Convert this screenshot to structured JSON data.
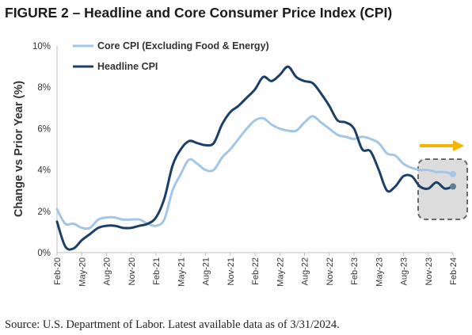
{
  "title": "FIGURE 2 – Headline and Core Consumer Price Index (CPI)",
  "source": "Source: U.S. Department of Labor. Latest available data as of 3/31/2024.",
  "colors": {
    "core": "#a4c6e6",
    "headline": "#1c3f66",
    "arrow": "#f5b400",
    "highlight_fill": "#dcdcdc",
    "highlight_border": "#6a6a6a",
    "axis": "#bfbfbf"
  },
  "chart_data": {
    "type": "line",
    "title": "FIGURE 2 – Headline and Core Consumer Price Index (CPI)",
    "xlabel": "",
    "ylabel": "Change vs Prior Year (%)",
    "ylim": [
      0,
      10
    ],
    "y_ticks": [
      "0%",
      "2%",
      "4%",
      "6%",
      "8%",
      "10%"
    ],
    "x_tick_labels": [
      "Feb-20",
      "May-20",
      "Aug-20",
      "Nov-20",
      "Feb-21",
      "May-21",
      "Aug-21",
      "Nov-21",
      "Feb-22",
      "May-22",
      "Aug-22",
      "Nov-22",
      "Feb-23",
      "May-23",
      "Aug-23",
      "Nov-23",
      "Feb-24"
    ],
    "x": [
      "Feb-20",
      "Mar-20",
      "Apr-20",
      "May-20",
      "Jun-20",
      "Jul-20",
      "Aug-20",
      "Sep-20",
      "Oct-20",
      "Nov-20",
      "Dec-20",
      "Jan-21",
      "Feb-21",
      "Mar-21",
      "Apr-21",
      "May-21",
      "Jun-21",
      "Jul-21",
      "Aug-21",
      "Sep-21",
      "Oct-21",
      "Nov-21",
      "Dec-21",
      "Jan-22",
      "Feb-22",
      "Mar-22",
      "Apr-22",
      "May-22",
      "Jun-22",
      "Jul-22",
      "Aug-22",
      "Sep-22",
      "Oct-22",
      "Nov-22",
      "Dec-22",
      "Jan-23",
      "Feb-23",
      "Mar-23",
      "Apr-23",
      "May-23",
      "Jun-23",
      "Jul-23",
      "Aug-23",
      "Sep-23",
      "Oct-23",
      "Nov-23",
      "Dec-23",
      "Jan-24",
      "Feb-24"
    ],
    "grid": false,
    "legend": "top-left",
    "series": [
      {
        "name": "Core CPI (Excluding Food & Energy)",
        "color": "#a4c6e6",
        "values": [
          2.1,
          1.4,
          1.4,
          1.2,
          1.2,
          1.6,
          1.7,
          1.7,
          1.6,
          1.6,
          1.6,
          1.4,
          1.3,
          1.6,
          3.0,
          3.8,
          4.5,
          4.3,
          4.0,
          4.0,
          4.6,
          5.0,
          5.5,
          6.0,
          6.4,
          6.5,
          6.2,
          6.0,
          5.9,
          5.9,
          6.3,
          6.6,
          6.3,
          6.0,
          5.7,
          5.6,
          5.5,
          5.6,
          5.5,
          5.3,
          4.8,
          4.7,
          4.3,
          4.1,
          4.0,
          4.0,
          3.9,
          3.9,
          3.8
        ]
      },
      {
        "name": "Headline CPI",
        "color": "#1c3f66",
        "values": [
          1.5,
          0.3,
          0.2,
          0.6,
          0.9,
          1.2,
          1.3,
          1.3,
          1.2,
          1.2,
          1.3,
          1.4,
          1.7,
          2.6,
          4.2,
          5.0,
          5.4,
          5.3,
          5.2,
          5.3,
          6.2,
          6.8,
          7.1,
          7.5,
          7.9,
          8.5,
          8.3,
          8.6,
          9.0,
          8.5,
          8.3,
          8.2,
          7.7,
          7.1,
          6.4,
          6.3,
          6.0,
          5.0,
          4.9,
          4.0,
          3.0,
          3.2,
          3.7,
          3.7,
          3.2,
          3.1,
          3.4,
          3.1,
          3.2
        ]
      }
    ],
    "annotations": [
      {
        "type": "highlight-box",
        "target": "latest values (Nov-23 to Feb-24)"
      },
      {
        "type": "arrow",
        "direction": "right"
      }
    ]
  }
}
